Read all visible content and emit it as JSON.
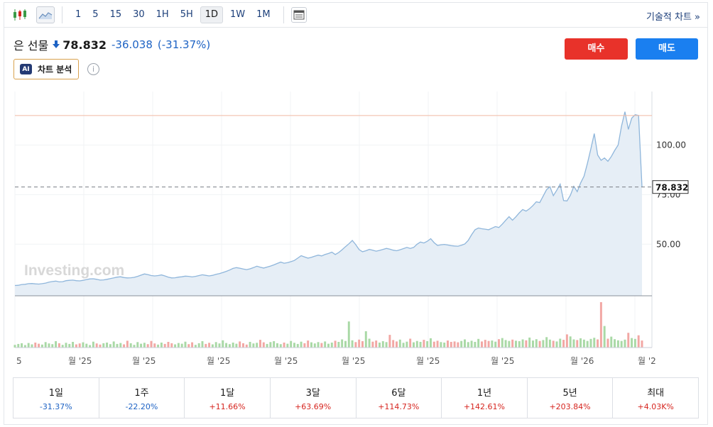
{
  "toolbar": {
    "timeframes": [
      "1",
      "5",
      "15",
      "30",
      "1H",
      "5H",
      "1D",
      "1W",
      "1M"
    ],
    "active_timeframe": "1D",
    "tech_chart_label": "기술적 차트 »"
  },
  "quote": {
    "name": "은 선물",
    "price": "78.832",
    "change": "-36.038",
    "change_pct": "(-31.37%)",
    "direction": "down"
  },
  "ai_button": {
    "badge": "AI",
    "label": "차트 분석"
  },
  "info_icon": "i",
  "buttons": {
    "buy": "매수",
    "sell": "매도"
  },
  "colors": {
    "down": "#1e63c4",
    "up": "#d6251f",
    "buy": "#e8322a",
    "sell": "#1a7ff0",
    "line": "#8fb6db",
    "area": "#e6eef6"
  },
  "chart_data": {
    "type": "area",
    "watermark": "Investing.com",
    "y_ticks": [
      50,
      75,
      100
    ],
    "y_tick_labels": [
      "50.00",
      "75.00",
      "100.00"
    ],
    "ylim": [
      24,
      127
    ],
    "current_price": 78.832,
    "current_price_label": "78.832",
    "reference_high": 114.9,
    "x_tick_labels": [
      "5",
      "월 '25",
      "월 '25",
      "월 '25",
      "월 '25",
      "월 '25",
      "월 '25",
      "월 '25",
      "월 '26",
      "월 '2"
    ],
    "series": [
      {
        "values": [
          29.2,
          29.3,
          29.7,
          29.8,
          30.1,
          30.2,
          30.0,
          29.9,
          30.1,
          30.4,
          30.9,
          31.2,
          31.4,
          31.0,
          31.1,
          31.6,
          31.8,
          31.9,
          31.6,
          31.5,
          31.8,
          32.2,
          32.5,
          32.6,
          32.3,
          31.9,
          32.0,
          32.3,
          32.7,
          33.0,
          33.4,
          33.6,
          33.2,
          33.0,
          33.1,
          33.3,
          33.8,
          34.4,
          35.0,
          34.7,
          34.2,
          34.0,
          34.2,
          34.5,
          34.0,
          33.4,
          33.0,
          33.1,
          33.4,
          33.6,
          33.9,
          33.8,
          33.5,
          33.8,
          34.2,
          34.6,
          34.3,
          34.0,
          34.3,
          34.8,
          35.2,
          35.7,
          36.3,
          37.0,
          37.8,
          38.2,
          37.9,
          37.5,
          37.2,
          37.6,
          38.2,
          38.9,
          38.4,
          38.0,
          38.5,
          39.0,
          39.6,
          40.3,
          41.0,
          40.4,
          40.7,
          41.2,
          41.8,
          43.0,
          44.2,
          43.6,
          43.0,
          43.4,
          44.0,
          44.5,
          44.1,
          44.8,
          45.3,
          46.0,
          44.8,
          45.8,
          47.2,
          48.8,
          50.2,
          51.9,
          49.8,
          47.3,
          46.2,
          46.7,
          47.4,
          47.0,
          46.5,
          46.9,
          47.4,
          47.9,
          47.5,
          47.0,
          46.7,
          47.2,
          47.8,
          48.4,
          47.9,
          48.4,
          50.0,
          51.1,
          50.6,
          51.5,
          52.8,
          50.8,
          49.4,
          49.7,
          49.9,
          49.6,
          49.3,
          49.1,
          49.0,
          49.5,
          50.1,
          51.9,
          54.8,
          57.3,
          58.2,
          57.8,
          57.6,
          57.3,
          58.1,
          58.9,
          58.4,
          60.1,
          62.0,
          63.9,
          62.1,
          63.8,
          65.8,
          67.5,
          66.7,
          67.9,
          69.5,
          71.4,
          71.0,
          74.2,
          77.5,
          79.0,
          74.5,
          77.2,
          80.3,
          72.0,
          71.8,
          74.7,
          79.2,
          76.5,
          80.9,
          84.3,
          90.8,
          98.1,
          105.8,
          95.0,
          92.3,
          93.5,
          91.8,
          94.2,
          97.3,
          100.0,
          109.6,
          116.8,
          107.9,
          113.6,
          115.3,
          114.9,
          78.832
        ]
      }
    ],
    "volume_values": [
      1.2,
      1.6,
      1.9,
      1.1,
      2.0,
      1.4,
      2.2,
      1.7,
      1.3,
      2.4,
      1.8,
      1.5,
      2.8,
      1.9,
      1.2,
      2.1,
      1.6,
      2.5,
      1.4,
      1.8,
      2.3,
      1.7,
      1.1,
      2.6,
      1.8,
      1.3,
      1.9,
      2.2,
      1.5,
      2.7,
      1.6,
      2.0,
      1.4,
      3.0,
      1.9,
      1.2,
      2.4,
      1.7,
      2.1,
      1.5,
      2.9,
      1.8,
      1.3,
      2.2,
      1.6,
      2.5,
      1.9,
      1.4,
      2.0,
      1.7,
      2.6,
      1.5,
      2.3,
      1.2,
      1.9,
      2.8,
      1.6,
      2.1,
      1.4,
      2.4,
      1.8,
      3.2,
      2.0,
      1.5,
      2.2,
      1.7,
      2.7,
      1.9,
      1.3,
      2.5,
      1.8,
      2.1,
      3.4,
      2.3,
      1.6,
      2.4,
      2.8,
      1.9,
      1.5,
      2.2,
      1.7,
      2.9,
      2.1,
      1.6,
      2.6,
      1.9,
      3.1,
      2.3,
      1.8,
      2.4,
      2.0,
      2.7,
      1.7,
      2.2,
      3.0,
      2.5,
      3.6,
      2.9,
      11.5,
      3.2,
      2.4,
      3.5,
      2.8,
      7.2,
      3.9,
      2.6,
      3.1,
      2.2,
      2.8,
      2.4,
      5.6,
      3.3,
      2.7,
      3.5,
      2.1,
      2.6,
      3.9,
      2.3,
      2.9,
      2.5,
      3.4,
      2.8,
      4.1,
      2.6,
      3.0,
      2.4,
      2.2,
      3.1,
      2.5,
      2.7,
      2.3,
      2.9,
      3.6,
      2.4,
      3.0,
      2.5,
      3.8,
      2.7,
      3.4,
      2.9,
      3.1,
      2.6,
      3.7,
      4.2,
      3.3,
      2.9,
      3.5,
      3.0,
      2.8,
      3.6,
      3.2,
      4.4,
      3.1,
      3.7,
      2.9,
      3.3,
      4.6,
      3.5,
      3.0,
      2.7,
      3.9,
      3.4,
      5.8,
      4.9,
      3.6,
      3.3,
      4.1,
      3.5,
      2.9,
      3.8,
      4.3,
      3.6,
      20.0,
      9.5,
      3.9,
      4.8,
      3.7,
      3.2,
      2.9,
      3.5,
      6.5,
      4.2,
      3.8,
      5.4,
      3.1
    ]
  },
  "performance": [
    {
      "label": "1일",
      "value": "-31.37%",
      "sign": "neg"
    },
    {
      "label": "1주",
      "value": "-22.20%",
      "sign": "neg"
    },
    {
      "label": "1달",
      "value": "+11.66%",
      "sign": "pos"
    },
    {
      "label": "3달",
      "value": "+63.69%",
      "sign": "pos"
    },
    {
      "label": "6달",
      "value": "+114.73%",
      "sign": "pos"
    },
    {
      "label": "1년",
      "value": "+142.61%",
      "sign": "pos"
    },
    {
      "label": "5년",
      "value": "+203.84%",
      "sign": "pos"
    },
    {
      "label": "최대",
      "value": "+4.03K%",
      "sign": "pos"
    }
  ]
}
